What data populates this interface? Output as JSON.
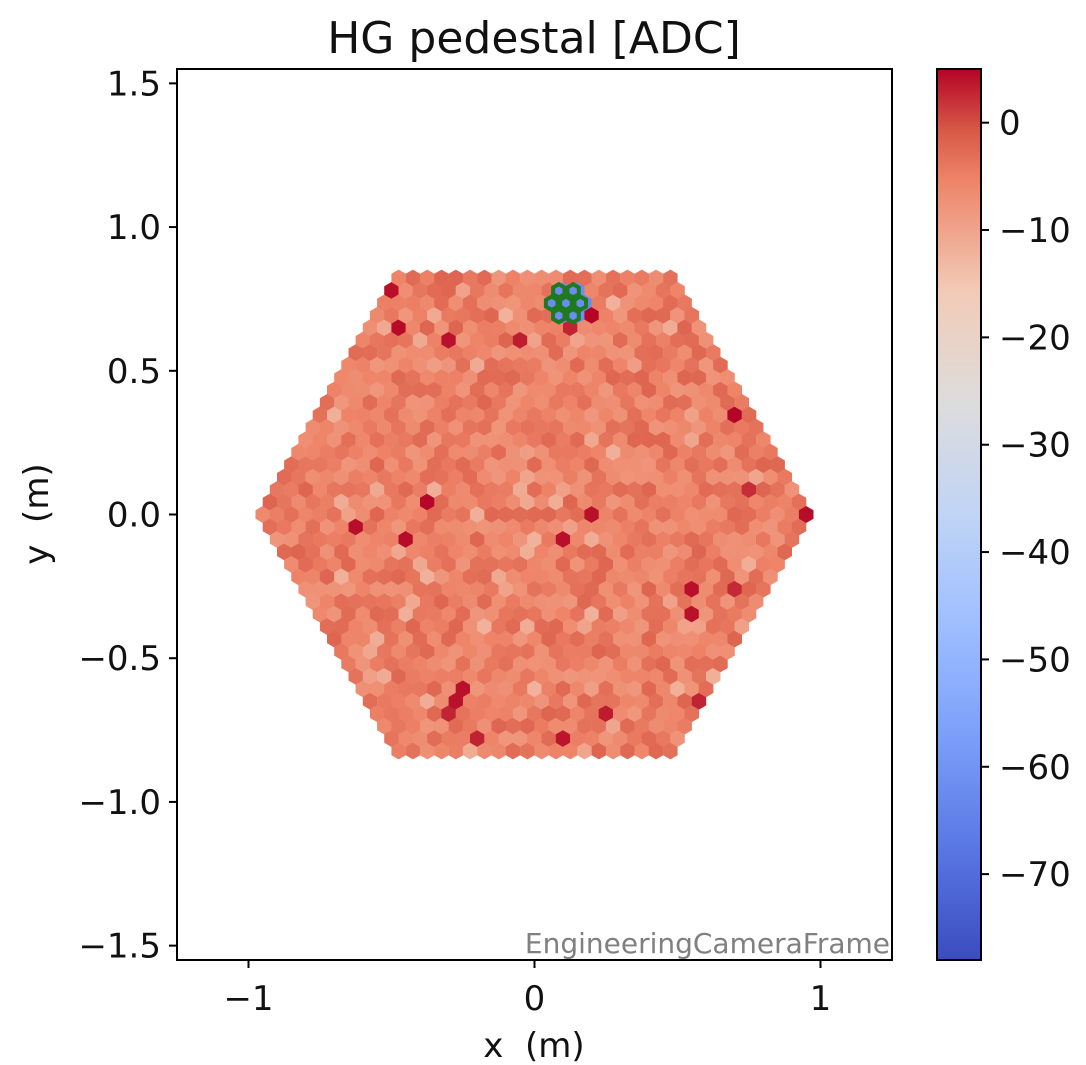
{
  "chart_data": {
    "type": "heatmap",
    "title": "HG pedestal [ADC]",
    "xlabel": "x  (m)",
    "ylabel": "y  (m)",
    "xlim": [
      -1.25,
      1.25
    ],
    "ylim": [
      -1.55,
      1.55
    ],
    "xticks": [
      {
        "value": -1,
        "label": "−1"
      },
      {
        "value": 0,
        "label": "0"
      },
      {
        "value": 1,
        "label": "1"
      }
    ],
    "yticks": [
      {
        "value": 1.5,
        "label": "1.5"
      },
      {
        "value": 1.0,
        "label": "1.0"
      },
      {
        "value": 0.5,
        "label": "0.5"
      },
      {
        "value": 0.0,
        "label": "0.0"
      },
      {
        "value": -0.5,
        "label": "−0.5"
      },
      {
        "value": -1.0,
        "label": "−1.0"
      },
      {
        "value": -1.5,
        "label": "−1.5"
      }
    ],
    "colorbar": {
      "colormap": "coolwarm",
      "range": [
        -78,
        5
      ],
      "ticks": [
        {
          "value": 0,
          "label": "0"
        },
        {
          "value": -10,
          "label": "−10"
        },
        {
          "value": -20,
          "label": "−20"
        },
        {
          "value": -30,
          "label": "−30"
        },
        {
          "value": -40,
          "label": "−40"
        },
        {
          "value": -50,
          "label": "−50"
        },
        {
          "value": -60,
          "label": "−60"
        },
        {
          "value": -70,
          "label": "−70"
        }
      ]
    },
    "camera": {
      "pixel_pitch_m": 0.05,
      "rings": 19,
      "typical_pedestal_adc": -5,
      "highlighted_module_center": [
        0.11,
        0.735
      ],
      "highlighted_module_outline_color": "#1f7a1f",
      "highlighted_pedestal_adc": -62
    },
    "frame_label": "EngineeringCameraFrame"
  }
}
